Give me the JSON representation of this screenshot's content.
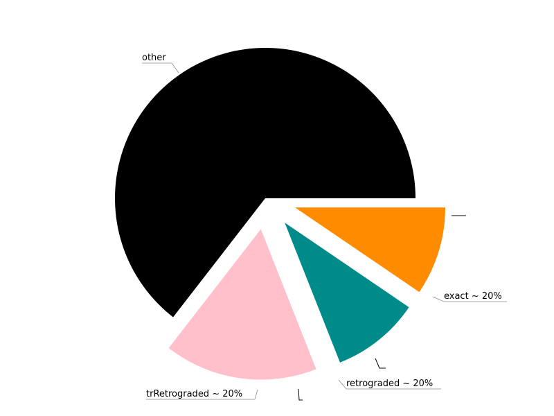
{
  "chart_data": {
    "type": "pie",
    "title": "",
    "slices": [
      {
        "label": "other",
        "value": 64.5,
        "color": "#000000",
        "exploded": false
      },
      {
        "label": "exact ~ 20%",
        "value": 16.5,
        "color": "#ffc0cb",
        "exploded": true
      },
      {
        "label": "retrograded ~ 20%",
        "value": 9.5,
        "color": "#008b8b",
        "exploded": true
      },
      {
        "label": "trRetrograded ~ 20%",
        "value": 9.5,
        "color": "#ff8c00",
        "exploded": true
      }
    ]
  }
}
